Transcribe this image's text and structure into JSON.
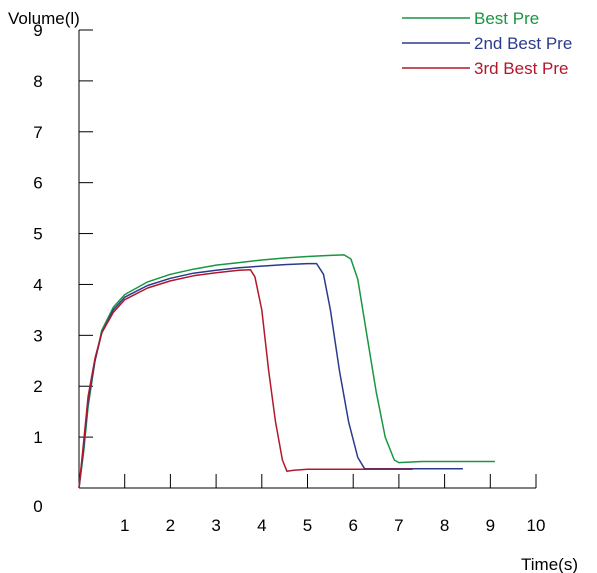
{
  "chart_data": {
    "type": "line",
    "title": "",
    "xlabel": "Time(s)",
    "ylabel": "Volume(l)",
    "xlim": [
      0,
      10
    ],
    "ylim": [
      0,
      9
    ],
    "x_ticks": [
      1,
      2,
      3,
      4,
      5,
      6,
      7,
      8,
      9,
      10
    ],
    "y_ticks": [
      0,
      1,
      2,
      3,
      4,
      5,
      6,
      7,
      8,
      9
    ],
    "grid": false,
    "legend_position": "top-right",
    "series": [
      {
        "name": "Best Pre",
        "color": "#1a9641",
        "points": [
          [
            0,
            0
          ],
          [
            0.1,
            0.7
          ],
          [
            0.2,
            1.6
          ],
          [
            0.35,
            2.5
          ],
          [
            0.5,
            3.1
          ],
          [
            0.75,
            3.55
          ],
          [
            1,
            3.8
          ],
          [
            1.5,
            4.05
          ],
          [
            2,
            4.2
          ],
          [
            2.5,
            4.3
          ],
          [
            3,
            4.38
          ],
          [
            3.5,
            4.43
          ],
          [
            4,
            4.48
          ],
          [
            4.5,
            4.52
          ],
          [
            5,
            4.55
          ],
          [
            5.5,
            4.57
          ],
          [
            5.8,
            4.58
          ],
          [
            5.95,
            4.5
          ],
          [
            6.1,
            4.1
          ],
          [
            6.3,
            3.0
          ],
          [
            6.5,
            1.9
          ],
          [
            6.7,
            1.0
          ],
          [
            6.9,
            0.55
          ],
          [
            7.0,
            0.5
          ],
          [
            7.5,
            0.52
          ],
          [
            8,
            0.52
          ],
          [
            8.5,
            0.52
          ],
          [
            9.1,
            0.52
          ]
        ]
      },
      {
        "name": "2nd Best Pre",
        "color": "#2b3a8c",
        "points": [
          [
            0,
            0
          ],
          [
            0.1,
            0.8
          ],
          [
            0.2,
            1.7
          ],
          [
            0.35,
            2.5
          ],
          [
            0.5,
            3.05
          ],
          [
            0.75,
            3.5
          ],
          [
            1,
            3.75
          ],
          [
            1.5,
            3.98
          ],
          [
            2,
            4.12
          ],
          [
            2.5,
            4.22
          ],
          [
            3,
            4.28
          ],
          [
            3.5,
            4.33
          ],
          [
            4,
            4.36
          ],
          [
            4.5,
            4.39
          ],
          [
            5,
            4.41
          ],
          [
            5.2,
            4.41
          ],
          [
            5.35,
            4.2
          ],
          [
            5.5,
            3.5
          ],
          [
            5.7,
            2.3
          ],
          [
            5.9,
            1.3
          ],
          [
            6.1,
            0.6
          ],
          [
            6.25,
            0.38
          ],
          [
            6.5,
            0.38
          ],
          [
            7,
            0.38
          ],
          [
            7.5,
            0.38
          ],
          [
            8,
            0.38
          ],
          [
            8.4,
            0.38
          ]
        ]
      },
      {
        "name": "3rd Best Pre",
        "color": "#b2182b",
        "points": [
          [
            0,
            0
          ],
          [
            0.1,
            0.9
          ],
          [
            0.2,
            1.8
          ],
          [
            0.35,
            2.55
          ],
          [
            0.5,
            3.05
          ],
          [
            0.75,
            3.45
          ],
          [
            1,
            3.7
          ],
          [
            1.5,
            3.93
          ],
          [
            2,
            4.07
          ],
          [
            2.5,
            4.17
          ],
          [
            3,
            4.23
          ],
          [
            3.5,
            4.28
          ],
          [
            3.75,
            4.29
          ],
          [
            3.85,
            4.15
          ],
          [
            4.0,
            3.5
          ],
          [
            4.15,
            2.3
          ],
          [
            4.3,
            1.3
          ],
          [
            4.45,
            0.55
          ],
          [
            4.55,
            0.33
          ],
          [
            4.7,
            0.35
          ],
          [
            5,
            0.37
          ],
          [
            5.5,
            0.37
          ],
          [
            6,
            0.37
          ],
          [
            6.5,
            0.37
          ],
          [
            7,
            0.37
          ],
          [
            7.3,
            0.37
          ]
        ]
      }
    ]
  }
}
